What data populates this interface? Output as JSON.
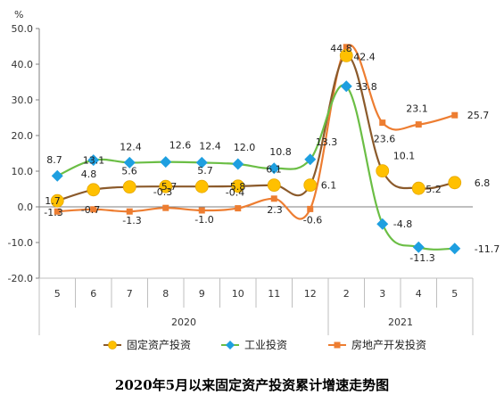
{
  "chart_data": {
    "type": "line",
    "title": "2020年5月以来固定资产投资累计增速走势图",
    "y_unit": "%",
    "categories": [
      "5",
      "6",
      "7",
      "8",
      "9",
      "10",
      "11",
      "12",
      "2",
      "3",
      "4",
      "5"
    ],
    "year_groups": [
      {
        "label": "2020",
        "start": 0,
        "end": 7
      },
      {
        "label": "2021",
        "start": 8,
        "end": 11
      }
    ],
    "ylim": [
      -20,
      50
    ],
    "yticks": [
      "-20.0",
      "-10.0",
      "0.0",
      "10.0",
      "20.0",
      "30.0",
      "40.0",
      "50.0"
    ],
    "grid": false,
    "legend_position": "bottom",
    "series": [
      {
        "name": "固定资产投资",
        "color": "#8B5A2B",
        "marker": "circle",
        "marker_color": "#FFC000",
        "values": [
          1.7,
          4.8,
          5.6,
          5.7,
          5.7,
          5.8,
          6.1,
          6.1,
          42.4,
          10.1,
          5.2,
          6.8
        ],
        "labels": [
          "1.7",
          "4.8",
          "5.6",
          "5.7",
          "5.7",
          "5.8",
          "6.1",
          "6.1",
          "42.4",
          "10.1",
          "5.2",
          "6.8"
        ]
      },
      {
        "name": "工业投资",
        "color": "#6BBE45",
        "marker": "diamond",
        "marker_color": "#1E9FE0",
        "values": [
          8.7,
          13.1,
          12.4,
          12.6,
          12.4,
          12.0,
          10.8,
          13.3,
          33.8,
          -4.8,
          -11.3,
          -11.7
        ],
        "labels": [
          "8.7",
          "13.1",
          "12.4",
          "12.6",
          "12.4",
          "12.0",
          "10.8",
          "13.3",
          "33.8",
          "-4.8",
          "-11.3",
          "-11.7"
        ]
      },
      {
        "name": "房地产开发投资",
        "color": "#ED7D31",
        "marker": "square",
        "marker_color": "#ED7D31",
        "values": [
          -1.3,
          -0.7,
          -1.3,
          -0.3,
          -1.0,
          -0.4,
          2.3,
          -0.6,
          44.8,
          23.6,
          23.1,
          25.7
        ],
        "labels": [
          "-1.3",
          "-0.7",
          "-1.3",
          "-0.3",
          "-1.0",
          "-0.4",
          "2.3",
          "-0.6",
          "44.8",
          "23.6",
          "23.1",
          "25.7"
        ]
      }
    ]
  }
}
